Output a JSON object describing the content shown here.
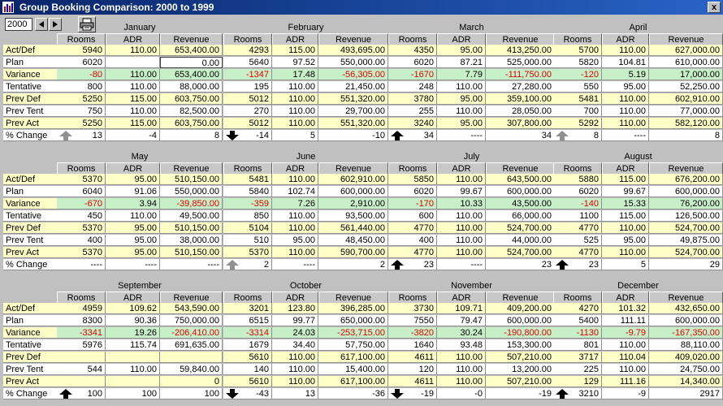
{
  "window": {
    "title": "Group Booking Comparison: 2000 to 1999",
    "close_label": "x"
  },
  "toolbar": {
    "year_value": "2000"
  },
  "column_headers": [
    "Rooms",
    "ADR",
    "Revenue"
  ],
  "row_labels": [
    "Act/Def",
    "Plan",
    "Variance",
    "Tentative",
    "Prev Def",
    "Prev Tent",
    "Prev Act",
    "% Change"
  ],
  "colors": {
    "yellow": "#ffffc8",
    "green": "#c8f0c8",
    "white": "#ffffff",
    "negative": "#e00000",
    "label_bg": "#ffffc8"
  },
  "row_colors": [
    "yellow",
    "white",
    "green",
    "white",
    "yellow",
    "white",
    "yellow",
    "white"
  ],
  "sections": [
    {
      "months": [
        {
          "name": "January",
          "rows": [
            [
              "5940",
              "110.00",
              "653,400.00"
            ],
            [
              "6020",
              "",
              "0.00"
            ],
            [
              "-80",
              "110.00",
              "653,400.00"
            ],
            [
              "800",
              "110.00",
              "88,000.00"
            ],
            [
              "5250",
              "115.00",
              "603,750.00"
            ],
            [
              "750",
              "110.00",
              "82,500.00"
            ],
            [
              "5250",
              "115.00",
              "603,750.00"
            ],
            [
              "13",
              "-4",
              "8"
            ]
          ],
          "change_arrow": "up-gray"
        },
        {
          "name": "February",
          "rows": [
            [
              "4293",
              "115.00",
              "493,695.00"
            ],
            [
              "5640",
              "97.52",
              "550,000.00"
            ],
            [
              "-1347",
              "17.48",
              "-56,305.00"
            ],
            [
              "195",
              "110.00",
              "21,450.00"
            ],
            [
              "5012",
              "110.00",
              "551,320.00"
            ],
            [
              "270",
              "110.00",
              "29,700.00"
            ],
            [
              "5012",
              "110.00",
              "551,320.00"
            ],
            [
              "-14",
              "5",
              "-10"
            ]
          ],
          "change_arrow": "down-black"
        },
        {
          "name": "March",
          "rows": [
            [
              "4350",
              "95.00",
              "413,250.00"
            ],
            [
              "6020",
              "87.21",
              "525,000.00"
            ],
            [
              "-1670",
              "7.79",
              "-111,750.00"
            ],
            [
              "248",
              "110.00",
              "27,280.00"
            ],
            [
              "3780",
              "95.00",
              "359,100.00"
            ],
            [
              "255",
              "110.00",
              "28,050.00"
            ],
            [
              "3240",
              "95.00",
              "307,800.00"
            ],
            [
              "34",
              "----",
              "34"
            ]
          ],
          "change_arrow": "up-black"
        },
        {
          "name": "April",
          "rows": [
            [
              "5700",
              "110.00",
              "627,000.00"
            ],
            [
              "5820",
              "104.81",
              "610,000.00"
            ],
            [
              "-120",
              "5.19",
              "17,000.00"
            ],
            [
              "550",
              "95.00",
              "52,250.00"
            ],
            [
              "5481",
              "110.00",
              "602,910.00"
            ],
            [
              "700",
              "110.00",
              "77,000.00"
            ],
            [
              "5292",
              "110.00",
              "582,120.00"
            ],
            [
              "8",
              "----",
              "8"
            ]
          ],
          "change_arrow": "up-gray"
        }
      ]
    },
    {
      "months": [
        {
          "name": "May",
          "rows": [
            [
              "5370",
              "95.00",
              "510,150.00"
            ],
            [
              "6040",
              "91.06",
              "550,000.00"
            ],
            [
              "-670",
              "3.94",
              "-39,850.00"
            ],
            [
              "450",
              "110.00",
              "49,500.00"
            ],
            [
              "5370",
              "95.00",
              "510,150.00"
            ],
            [
              "400",
              "95.00",
              "38,000.00"
            ],
            [
              "5370",
              "95.00",
              "510,150.00"
            ],
            [
              "----",
              "----",
              "----"
            ]
          ],
          "change_arrow": ""
        },
        {
          "name": "June",
          "rows": [
            [
              "5481",
              "110.00",
              "602,910.00"
            ],
            [
              "5840",
              "102.74",
              "600,000.00"
            ],
            [
              "-359",
              "7.26",
              "2,910.00"
            ],
            [
              "850",
              "110.00",
              "93,500.00"
            ],
            [
              "5104",
              "110.00",
              "561,440.00"
            ],
            [
              "510",
              "95.00",
              "48,450.00"
            ],
            [
              "5370",
              "110.00",
              "590,700.00"
            ],
            [
              "2",
              "----",
              "2"
            ]
          ],
          "change_arrow": "up-gray"
        },
        {
          "name": "July",
          "rows": [
            [
              "5850",
              "110.00",
              "643,500.00"
            ],
            [
              "6020",
              "99.67",
              "600,000.00"
            ],
            [
              "-170",
              "10.33",
              "43,500.00"
            ],
            [
              "600",
              "110.00",
              "66,000.00"
            ],
            [
              "4770",
              "110.00",
              "524,700.00"
            ],
            [
              "400",
              "110.00",
              "44,000.00"
            ],
            [
              "4770",
              "110.00",
              "524,700.00"
            ],
            [
              "23",
              "----",
              "23"
            ]
          ],
          "change_arrow": "up-black"
        },
        {
          "name": "August",
          "rows": [
            [
              "5880",
              "115.00",
              "676,200.00"
            ],
            [
              "6020",
              "99.67",
              "600,000.00"
            ],
            [
              "-140",
              "15.33",
              "76,200.00"
            ],
            [
              "1100",
              "115.00",
              "126,500.00"
            ],
            [
              "4770",
              "110.00",
              "524,700.00"
            ],
            [
              "525",
              "95.00",
              "49,875.00"
            ],
            [
              "4770",
              "110.00",
              "524,700.00"
            ],
            [
              "23",
              "5",
              "29"
            ]
          ],
          "change_arrow": "up-black"
        }
      ]
    },
    {
      "months": [
        {
          "name": "September",
          "rows": [
            [
              "4959",
              "109.62",
              "543,590.00"
            ],
            [
              "8300",
              "90.36",
              "750,000.00"
            ],
            [
              "-3341",
              "19.26",
              "-206,410.00"
            ],
            [
              "5976",
              "115.74",
              "691,635.00"
            ],
            [
              "",
              "",
              ""
            ],
            [
              "544",
              "110.00",
              "59,840.00"
            ],
            [
              "",
              "",
              "0"
            ],
            [
              "100",
              "100",
              "100"
            ]
          ],
          "change_arrow": "up-black"
        },
        {
          "name": "October",
          "rows": [
            [
              "3201",
              "123.80",
              "396,285.00"
            ],
            [
              "6515",
              "99.77",
              "650,000.00"
            ],
            [
              "-3314",
              "24.03",
              "-253,715.00"
            ],
            [
              "1679",
              "34.40",
              "57,750.00"
            ],
            [
              "5610",
              "110.00",
              "617,100.00"
            ],
            [
              "140",
              "110.00",
              "15,400.00"
            ],
            [
              "5610",
              "110.00",
              "617,100.00"
            ],
            [
              "-43",
              "13",
              "-36"
            ]
          ],
          "change_arrow": "down-black"
        },
        {
          "name": "November",
          "rows": [
            [
              "3730",
              "109.71",
              "409,200.00"
            ],
            [
              "7550",
              "79.47",
              "600,000.00"
            ],
            [
              "-3820",
              "30.24",
              "-190,800.00"
            ],
            [
              "1640",
              "93.48",
              "153,300.00"
            ],
            [
              "4611",
              "110.00",
              "507,210.00"
            ],
            [
              "120",
              "110.00",
              "13,200.00"
            ],
            [
              "4611",
              "110.00",
              "507,210.00"
            ],
            [
              "-19",
              "-0",
              "-19"
            ]
          ],
          "change_arrow": "down-black"
        },
        {
          "name": "December",
          "rows": [
            [
              "4270",
              "101.32",
              "432,650.00"
            ],
            [
              "5400",
              "111.11",
              "600,000.00"
            ],
            [
              "-1130",
              "-9.79",
              "-167,350.00"
            ],
            [
              "801",
              "110.00",
              "88,110.00"
            ],
            [
              "3717",
              "110.04",
              "409,020.00"
            ],
            [
              "225",
              "110.00",
              "24,750.00"
            ],
            [
              "129",
              "111.16",
              "14,340.00"
            ],
            [
              "3210",
              "-9",
              "2917"
            ]
          ],
          "change_arrow": "up-black"
        }
      ]
    }
  ]
}
